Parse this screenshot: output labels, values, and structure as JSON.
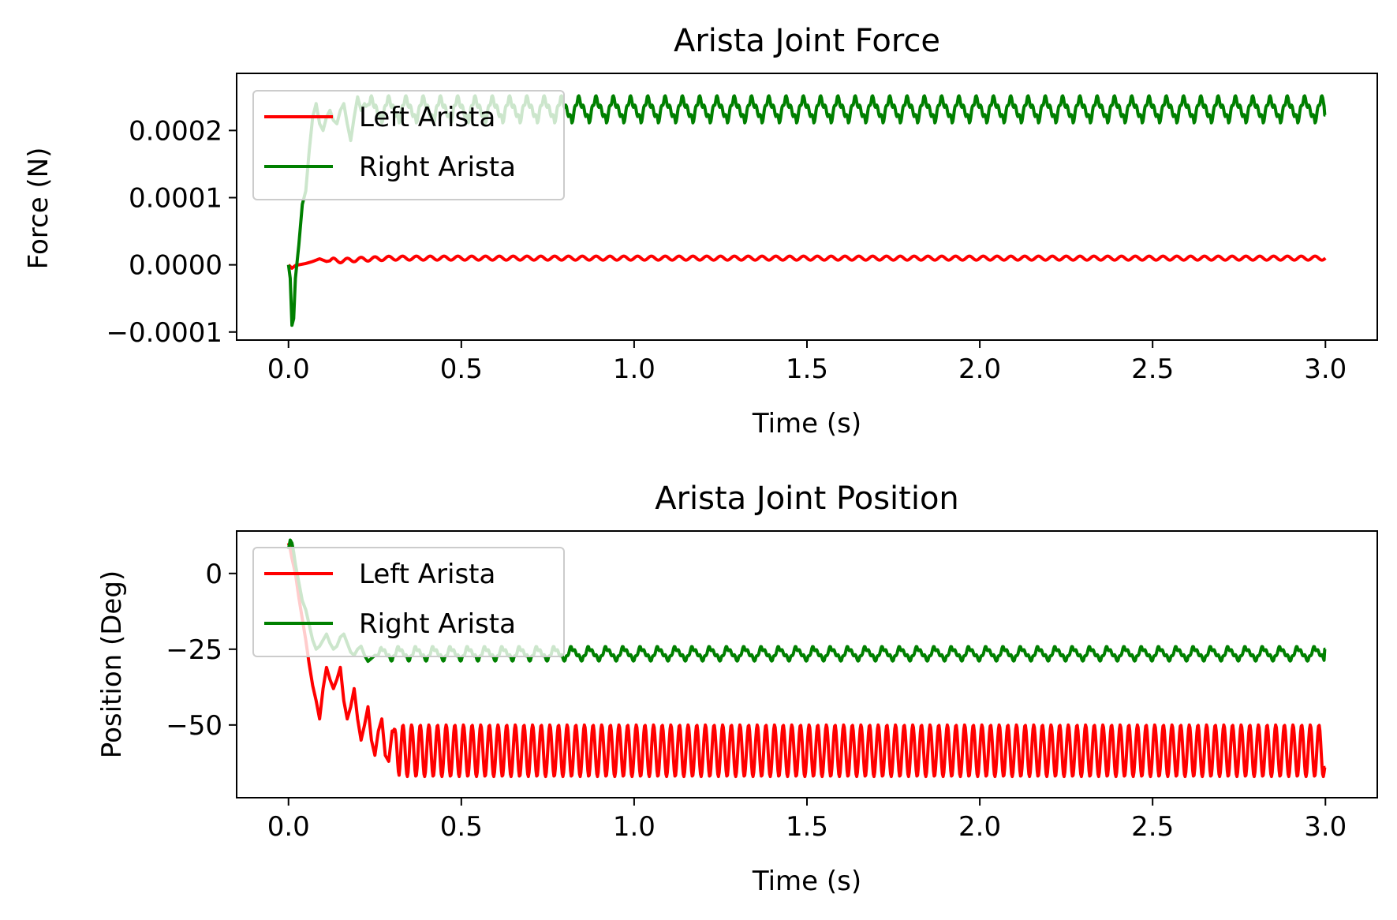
{
  "chart_data": [
    {
      "type": "line",
      "title": "Arista Joint Force",
      "xlabel": "Time (s)",
      "ylabel": "Force (N)",
      "xlim": [
        -0.15,
        3.15
      ],
      "ylim": [
        -0.000112,
        0.000285
      ],
      "xticks": [
        0.0,
        0.5,
        1.0,
        1.5,
        2.0,
        2.5,
        3.0
      ],
      "xtick_labels": [
        "0.0",
        "0.5",
        "1.0",
        "1.5",
        "2.0",
        "2.5",
        "3.0"
      ],
      "yticks": [
        -0.0001,
        0.0,
        0.0001,
        0.0002
      ],
      "ytick_labels": [
        "−0.0001",
        "0.0000",
        "0.0001",
        "0.0002"
      ],
      "legend": {
        "placement": "upper-left"
      },
      "grid": false,
      "series": [
        {
          "name": "Left Arista",
          "color": "#ff0000",
          "x": [
            0.0,
            0.01,
            0.02,
            0.03,
            0.05,
            0.07,
            0.09,
            0.11,
            0.13,
            0.15,
            0.2,
            0.25,
            0.3,
            0.4,
            0.5,
            0.75,
            1.0,
            1.5,
            2.0,
            2.5,
            3.0
          ],
          "y": [
            0.0,
            -5e-06,
            -1e-06,
            0.0,
            2e-06,
            5e-06,
            9e-06,
            5e-06,
            7e-06,
            6e-06,
            8e-06,
            9e-06,
            1e-05,
            1e-05,
            1e-05,
            1e-05,
            1e-05,
            1e-05,
            1e-05,
            1e-05,
            1e-05
          ],
          "oscillation": {
            "frequency_hz": 25,
            "amplitude": 3e-06
          }
        },
        {
          "name": "Right Arista",
          "color": "#008000",
          "x": [
            0.0,
            0.005,
            0.01,
            0.015,
            0.02,
            0.03,
            0.04,
            0.05,
            0.06,
            0.07,
            0.08,
            0.09,
            0.1,
            0.11,
            0.12,
            0.13,
            0.14,
            0.15,
            0.16,
            0.17,
            0.18,
            0.19,
            0.2,
            0.21,
            0.22
          ],
          "y": [
            0.0,
            -2e-05,
            -9e-05,
            -8e-05,
            -2e-05,
            3e-05,
            9e-05,
            0.00011,
            0.00017,
            0.00022,
            0.00024,
            0.00021,
            0.0002,
            0.00022,
            0.00023,
            0.000215,
            0.00021,
            0.00023,
            0.00024,
            0.00021,
            0.000185,
            0.00022,
            0.00025,
            0.00023,
            0.00024
          ],
          "steady_state": {
            "from_x": 0.22,
            "to_x": 3.0,
            "mean": 0.000232,
            "frequency_hz": 20,
            "amplitude": 1.8e-05,
            "end_value": 0.000223
          }
        }
      ]
    },
    {
      "type": "line",
      "title": "Arista Joint Position",
      "xlabel": "Time (s)",
      "ylabel": "Position (Deg)",
      "xlim": [
        -0.15,
        3.15
      ],
      "ylim": [
        -74,
        14
      ],
      "xticks": [
        0.0,
        0.5,
        1.0,
        1.5,
        2.0,
        2.5,
        3.0
      ],
      "xtick_labels": [
        "0.0",
        "0.5",
        "1.0",
        "1.5",
        "2.0",
        "2.5",
        "3.0"
      ],
      "yticks": [
        -50,
        -25,
        0
      ],
      "ytick_labels": [
        "−50",
        "−25",
        "0"
      ],
      "legend": {
        "placement": "upper-left"
      },
      "grid": false,
      "series": [
        {
          "name": "Left Arista",
          "color": "#ff0000",
          "x": [
            0.0,
            0.005,
            0.01,
            0.02,
            0.03,
            0.04,
            0.05,
            0.06,
            0.07,
            0.08,
            0.09,
            0.1,
            0.11,
            0.12,
            0.13,
            0.14,
            0.15,
            0.16,
            0.17,
            0.18,
            0.19,
            0.2,
            0.21,
            0.22,
            0.23,
            0.24,
            0.25,
            0.26,
            0.27,
            0.28,
            0.29,
            0.3
          ],
          "y": [
            10,
            8,
            5,
            0,
            -8,
            -15,
            -22,
            -30,
            -37,
            -42,
            -48,
            -38,
            -31,
            -35,
            -38,
            -35,
            -31,
            -42,
            -48,
            -44,
            -38,
            -48,
            -55,
            -50,
            -44,
            -55,
            -60,
            -52,
            -48,
            -60,
            -62,
            -52
          ],
          "steady_state": {
            "from_x": 0.3,
            "to_x": 3.0,
            "center": -58.5,
            "amplitude": 8.5,
            "frequency_hz": 40,
            "end_value": -64
          }
        },
        {
          "name": "Right Arista",
          "color": "#008000",
          "x": [
            0.0,
            0.005,
            0.01,
            0.015,
            0.02,
            0.03,
            0.04,
            0.05,
            0.06,
            0.07,
            0.08,
            0.09,
            0.1,
            0.11,
            0.12,
            0.13,
            0.14,
            0.15,
            0.16,
            0.17,
            0.18,
            0.19,
            0.2,
            0.21,
            0.22,
            0.23,
            0.24,
            0.25
          ],
          "y": [
            8,
            11,
            10,
            7,
            3,
            -3,
            -9,
            -12,
            -17,
            -22,
            -25,
            -24,
            -22,
            -20,
            -23,
            -25,
            -24,
            -21,
            -20,
            -23,
            -26,
            -27,
            -25,
            -24,
            -27,
            -29,
            -28,
            -27
          ],
          "steady_state": {
            "from_x": 0.25,
            "to_x": 3.0,
            "mean": -26.5,
            "frequency_hz": 20,
            "amplitude": 2.2,
            "end_value": -25
          }
        }
      ]
    }
  ]
}
